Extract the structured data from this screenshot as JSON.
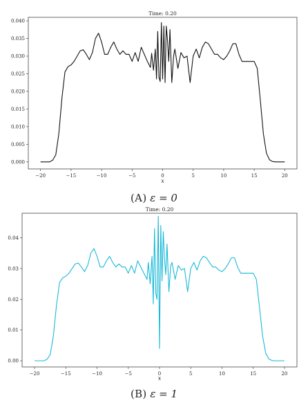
{
  "chart_data": [
    {
      "type": "line",
      "title": "Time: 0.20",
      "xlabel": "x",
      "ylabel": "",
      "xlim": [
        -22,
        22
      ],
      "ylim": [
        -0.002,
        0.041
      ],
      "xticks": [
        -20,
        -15,
        -10,
        -5,
        0,
        5,
        10,
        15,
        20
      ],
      "yticks": [
        0.0,
        0.005,
        0.01,
        0.015,
        0.02,
        0.025,
        0.03,
        0.035,
        0.04
      ],
      "ytick_labels": [
        "0.000",
        "0.005",
        "0.010",
        "0.015",
        "0.020",
        "0.025",
        "0.030",
        "0.035",
        "0.040"
      ],
      "grid": false,
      "color": "#111111",
      "series": [
        {
          "x": [
            -20,
            -18.5,
            -18,
            -17.5,
            -17,
            -16.5,
            -16,
            -15.5,
            -15,
            -14.5,
            -14,
            -13.5,
            -13,
            -12.5,
            -12,
            -11.5,
            -11,
            -10.5,
            -10,
            -9.5,
            -9,
            -8.5,
            -8,
            -7.5,
            -7,
            -6.5,
            -6,
            -5.5,
            -5,
            -4.5,
            -4,
            -3.5,
            -3,
            -2.5,
            -2,
            -1.8,
            -1.5,
            -1.2,
            -1,
            -0.8,
            -0.6,
            -0.4,
            -0.2,
            0,
            0.2,
            0.4,
            0.6,
            0.8,
            1,
            1.2,
            1.5,
            1.8,
            2,
            2.5,
            3,
            3.5,
            4,
            4.5,
            5,
            5.5,
            6,
            6.5,
            7,
            7.5,
            8,
            8.5,
            9,
            9.5,
            10,
            10.5,
            11,
            11.5,
            12,
            12.5,
            13,
            13.5,
            14,
            14.5,
            15,
            15.5,
            16,
            16.5,
            17,
            17.5,
            18,
            18.5,
            20
          ],
          "y": [
            0.0,
            0.0,
            0.0005,
            0.002,
            0.008,
            0.018,
            0.0255,
            0.027,
            0.0275,
            0.0285,
            0.03,
            0.0315,
            0.0318,
            0.0305,
            0.029,
            0.031,
            0.035,
            0.0365,
            0.034,
            0.0305,
            0.0305,
            0.0325,
            0.034,
            0.032,
            0.0305,
            0.0315,
            0.0305,
            0.0305,
            0.0285,
            0.031,
            0.0285,
            0.0325,
            0.0305,
            0.0285,
            0.0268,
            0.0308,
            0.026,
            0.032,
            0.0235,
            0.037,
            0.024,
            0.0228,
            0.0395,
            0.0235,
            0.0385,
            0.0225,
            0.0385,
            0.0345,
            0.0285,
            0.0375,
            0.0225,
            0.03,
            0.032,
            0.0265,
            0.031,
            0.0295,
            0.03,
            0.0225,
            0.03,
            0.032,
            0.0295,
            0.0325,
            0.034,
            0.0335,
            0.032,
            0.0305,
            0.0305,
            0.0295,
            0.029,
            0.03,
            0.0315,
            0.0335,
            0.0335,
            0.0305,
            0.0285,
            0.0285,
            0.0285,
            0.0285,
            0.0285,
            0.0265,
            0.0175,
            0.008,
            0.0025,
            0.0006,
            0.0001,
            0.0,
            0.0
          ]
        }
      ]
    },
    {
      "type": "line",
      "title": "Time: 0.20",
      "xlabel": "x",
      "ylabel": "",
      "xlim": [
        -22,
        22
      ],
      "ylim": [
        -0.002,
        0.048
      ],
      "xticks": [
        -20,
        -15,
        -10,
        -5,
        0,
        5,
        10,
        15,
        20
      ],
      "yticks": [
        0.0,
        0.01,
        0.02,
        0.03,
        0.04
      ],
      "ytick_labels": [
        "0.00",
        "0.01",
        "0.02",
        "0.03",
        "0.04"
      ],
      "grid": false,
      "color": "#19b9d8",
      "series": [
        {
          "x": [
            -20,
            -18.5,
            -18,
            -17.5,
            -17,
            -16.5,
            -16,
            -15.5,
            -15,
            -14.5,
            -14,
            -13.5,
            -13,
            -12.5,
            -12,
            -11.5,
            -11,
            -10.5,
            -10,
            -9.5,
            -9,
            -8.5,
            -8,
            -7.5,
            -7,
            -6.5,
            -6,
            -5.5,
            -5,
            -4.5,
            -4,
            -3.5,
            -3,
            -2.5,
            -2,
            -1.8,
            -1.5,
            -1.2,
            -1,
            -0.8,
            -0.6,
            -0.4,
            -0.2,
            0,
            0.2,
            0.4,
            0.6,
            0.8,
            1,
            1.2,
            1.5,
            1.8,
            2,
            2.5,
            3,
            3.5,
            4,
            4.5,
            5,
            5.5,
            6,
            6.5,
            7,
            7.5,
            8,
            8.5,
            9,
            9.5,
            10,
            10.5,
            11,
            11.5,
            12,
            12.5,
            13,
            13.5,
            14,
            14.5,
            15,
            15.5,
            16,
            16.5,
            17,
            17.5,
            18,
            18.5,
            20
          ],
          "y": [
            0.0,
            0.0,
            0.0005,
            0.002,
            0.008,
            0.018,
            0.0255,
            0.027,
            0.0275,
            0.0285,
            0.03,
            0.0315,
            0.0318,
            0.0305,
            0.029,
            0.031,
            0.035,
            0.0365,
            0.034,
            0.0305,
            0.0305,
            0.0325,
            0.034,
            0.032,
            0.0305,
            0.0315,
            0.0305,
            0.0305,
            0.0285,
            0.031,
            0.0285,
            0.0325,
            0.0305,
            0.0285,
            0.0265,
            0.032,
            0.025,
            0.034,
            0.0185,
            0.043,
            0.022,
            0.02,
            0.047,
            0.004,
            0.044,
            0.026,
            0.042,
            0.033,
            0.028,
            0.038,
            0.0225,
            0.031,
            0.032,
            0.0265,
            0.031,
            0.0295,
            0.03,
            0.0225,
            0.03,
            0.032,
            0.0295,
            0.0325,
            0.034,
            0.0335,
            0.032,
            0.0305,
            0.0305,
            0.0295,
            0.029,
            0.03,
            0.0315,
            0.0335,
            0.0335,
            0.0305,
            0.0285,
            0.0285,
            0.0285,
            0.0285,
            0.0285,
            0.0265,
            0.0175,
            0.008,
            0.0025,
            0.0006,
            0.0001,
            0.0,
            0.0
          ]
        }
      ]
    }
  ],
  "captions": [
    {
      "label": "(A)",
      "math": "ε = 0"
    },
    {
      "label": "(B)",
      "math": "ε = 1"
    }
  ]
}
